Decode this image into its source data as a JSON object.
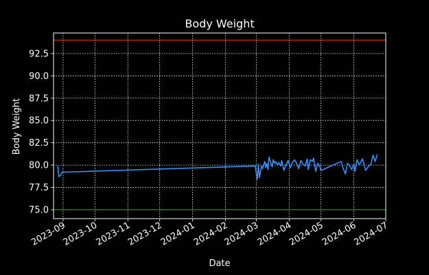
{
  "chart_data": {
    "type": "line",
    "title": "Body Weight",
    "xlabel": "Date",
    "ylabel": "Body Weight",
    "xlim": [
      "2023-08-23",
      "2024-07-01"
    ],
    "ylim": [
      74.0,
      94.8
    ],
    "x_ticks": [
      "2023-09",
      "2023-10",
      "2023-11",
      "2023-12",
      "2024-01",
      "2024-02",
      "2024-03",
      "2024-04",
      "2024-05",
      "2024-06",
      "2024-07"
    ],
    "y_ticks": [
      "75.0",
      "77.5",
      "80.0",
      "82.5",
      "85.0",
      "87.5",
      "90.0",
      "92.5"
    ],
    "grid": true,
    "legend": false,
    "colors": {
      "background": "#000000",
      "text": "#ffffff",
      "grid": "#ffffff",
      "series": "#3391ff"
    },
    "reference_lines": [
      {
        "y": 94.0,
        "color": "#d62400"
      },
      {
        "y": 75.0,
        "color": "#14a014"
      }
    ],
    "series": [
      {
        "color": "#3391ff",
        "points": [
          [
            "2023-08-27",
            79.9
          ],
          [
            "2023-08-28",
            78.7
          ],
          [
            "2023-08-30",
            78.9
          ],
          [
            "2023-08-31",
            79.2
          ],
          [
            "2024-02-29",
            79.9
          ],
          [
            "2024-03-02",
            78.4
          ],
          [
            "2024-03-03",
            80.1
          ],
          [
            "2024-03-04",
            78.6
          ],
          [
            "2024-03-06",
            79.9
          ],
          [
            "2024-03-07",
            79.6
          ],
          [
            "2024-03-09",
            80.4
          ],
          [
            "2024-03-10",
            79.7
          ],
          [
            "2024-03-11",
            80.2
          ],
          [
            "2024-03-12",
            79.5
          ],
          [
            "2024-03-13",
            80.9
          ],
          [
            "2024-03-14",
            80.5
          ],
          [
            "2024-03-16",
            79.8
          ],
          [
            "2024-03-17",
            80.6
          ],
          [
            "2024-03-18",
            80.2
          ],
          [
            "2024-03-19",
            80.4
          ],
          [
            "2024-03-21",
            80.0
          ],
          [
            "2024-03-22",
            80.3
          ],
          [
            "2024-03-24",
            79.9
          ],
          [
            "2024-03-25",
            80.5
          ],
          [
            "2024-03-27",
            79.4
          ],
          [
            "2024-03-29",
            80.0
          ],
          [
            "2024-03-31",
            80.5
          ],
          [
            "2024-04-02",
            79.7
          ],
          [
            "2024-04-04",
            80.3
          ],
          [
            "2024-04-06",
            80.6
          ],
          [
            "2024-04-08",
            80.2
          ],
          [
            "2024-04-10",
            79.6
          ],
          [
            "2024-04-12",
            80.5
          ],
          [
            "2024-04-14",
            80.1
          ],
          [
            "2024-04-16",
            79.9
          ],
          [
            "2024-04-18",
            80.7
          ],
          [
            "2024-04-19",
            79.5
          ],
          [
            "2024-04-21",
            80.6
          ],
          [
            "2024-04-23",
            80.4
          ],
          [
            "2024-04-24",
            80.8
          ],
          [
            "2024-04-26",
            79.3
          ],
          [
            "2024-04-28",
            80.2
          ],
          [
            "2024-04-30",
            79.8
          ],
          [
            "2024-05-01",
            79.4
          ],
          [
            "2024-05-20",
            80.4
          ],
          [
            "2024-05-22",
            79.6
          ],
          [
            "2024-05-24",
            79.0
          ],
          [
            "2024-05-26",
            80.2
          ],
          [
            "2024-05-28",
            79.9
          ],
          [
            "2024-05-30",
            79.5
          ],
          [
            "2024-06-01",
            80.1
          ],
          [
            "2024-06-02",
            79.3
          ],
          [
            "2024-06-04",
            80.6
          ],
          [
            "2024-06-06",
            80.0
          ],
          [
            "2024-06-09",
            80.7
          ],
          [
            "2024-06-10",
            80.3
          ],
          [
            "2024-06-12",
            79.4
          ],
          [
            "2024-06-15",
            79.9
          ],
          [
            "2024-06-17",
            80.1
          ],
          [
            "2024-06-19",
            81.1
          ],
          [
            "2024-06-21",
            80.4
          ],
          [
            "2024-06-23",
            81.2
          ]
        ]
      }
    ]
  }
}
